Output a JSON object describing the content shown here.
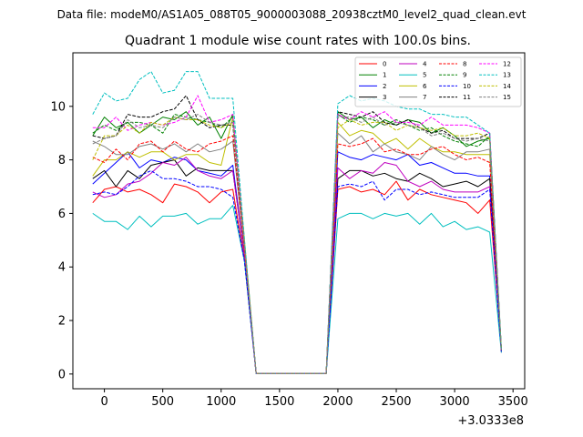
{
  "chart_data": {
    "type": "line",
    "suptitle": "Data file: modeM0/AS1A05_088T05_9000003088_20938cztM0_level2_quad_clean.evt",
    "title": "Quadrant 1 module wise count rates with 100.0s bins.",
    "xlabel": "",
    "ylabel": "",
    "x_offset_label": "+3.0333e8",
    "xlim": [
      -270,
      3600
    ],
    "ylim": [
      -0.55,
      12.0
    ],
    "xticks": [
      0,
      500,
      1000,
      1500,
      2000,
      2500,
      3000,
      3500
    ],
    "yticks": [
      0,
      2,
      4,
      6,
      8,
      10
    ],
    "legend_location": "top-right",
    "x": [
      -100,
      0,
      100,
      200,
      300,
      400,
      500,
      600,
      700,
      800,
      900,
      1000,
      1100,
      1200,
      1300,
      1400,
      1500,
      1600,
      1700,
      1800,
      1900,
      2000,
      2100,
      2200,
      2300,
      2400,
      2500,
      2600,
      2700,
      2800,
      2900,
      3000,
      3100,
      3200,
      3300,
      3400
    ],
    "series": [
      {
        "name": "0",
        "color": "#ff0000",
        "dash": "solid",
        "values": [
          6.4,
          6.9,
          7.0,
          6.8,
          6.9,
          6.7,
          6.4,
          7.1,
          7.0,
          6.8,
          6.4,
          6.8,
          6.9,
          4.2,
          0.02,
          0.02,
          0.02,
          0.02,
          0.02,
          0.02,
          0.02,
          6.9,
          7.0,
          6.8,
          6.9,
          6.7,
          7.2,
          6.5,
          6.9,
          6.7,
          6.6,
          6.5,
          6.4,
          6.0,
          6.5,
          0.9
        ]
      },
      {
        "name": "1",
        "color": "#008000",
        "dash": "solid",
        "values": [
          8.9,
          9.6,
          9.2,
          9.4,
          9.0,
          9.3,
          9.6,
          9.5,
          9.8,
          9.3,
          9.6,
          8.8,
          9.7,
          4.8,
          0.02,
          0.02,
          0.02,
          0.02,
          0.02,
          0.02,
          0.02,
          9.8,
          9.5,
          9.6,
          9.2,
          9.5,
          9.3,
          9.5,
          9.4,
          9.0,
          9.2,
          8.9,
          8.5,
          8.7,
          8.8,
          0.9
        ]
      },
      {
        "name": "2",
        "color": "#0000ff",
        "dash": "solid",
        "values": [
          7.1,
          7.5,
          7.9,
          8.3,
          7.7,
          8.0,
          7.9,
          8.1,
          8.0,
          7.6,
          7.5,
          7.4,
          7.8,
          4.4,
          0.02,
          0.02,
          0.02,
          0.02,
          0.02,
          0.02,
          0.02,
          8.3,
          8.1,
          8.0,
          8.2,
          8.1,
          8.0,
          8.2,
          7.8,
          7.9,
          7.7,
          7.5,
          7.5,
          7.4,
          7.4,
          0.85
        ]
      },
      {
        "name": "3",
        "color": "#000000",
        "dash": "solid",
        "values": [
          7.3,
          7.6,
          7.0,
          7.6,
          7.3,
          7.8,
          7.9,
          8.0,
          7.4,
          7.7,
          7.6,
          7.6,
          7.6,
          4.4,
          0.02,
          0.02,
          0.02,
          0.02,
          0.02,
          0.02,
          0.02,
          7.3,
          7.6,
          7.6,
          7.4,
          7.5,
          7.3,
          7.2,
          7.5,
          7.3,
          7.0,
          7.1,
          7.2,
          7.0,
          7.3,
          0.85
        ]
      },
      {
        "name": "4",
        "color": "#bf00bf",
        "dash": "solid",
        "values": [
          6.8,
          6.6,
          6.7,
          7.1,
          7.2,
          7.5,
          7.9,
          7.8,
          8.1,
          7.6,
          7.4,
          7.3,
          7.6,
          4.4,
          0.02,
          0.02,
          0.02,
          0.02,
          0.02,
          0.02,
          0.02,
          7.7,
          7.3,
          7.6,
          7.5,
          7.9,
          7.8,
          7.2,
          7.0,
          7.2,
          6.9,
          6.8,
          6.8,
          6.8,
          7.0,
          0.8
        ]
      },
      {
        "name": "5",
        "color": "#00bfbf",
        "dash": "solid",
        "values": [
          6.0,
          5.7,
          5.7,
          5.4,
          5.9,
          5.5,
          5.9,
          5.9,
          6.0,
          5.6,
          5.8,
          5.8,
          6.3,
          4.2,
          0.02,
          0.02,
          0.02,
          0.02,
          0.02,
          0.02,
          0.02,
          5.8,
          6.0,
          6.0,
          5.8,
          6.0,
          5.9,
          6.0,
          5.6,
          6.0,
          5.5,
          5.7,
          5.4,
          5.5,
          5.3,
          0.8
        ]
      },
      {
        "name": "6",
        "color": "#bfbf00",
        "dash": "solid",
        "values": [
          7.4,
          8.0,
          8.0,
          8.3,
          8.1,
          8.3,
          8.3,
          8.0,
          8.2,
          8.2,
          7.9,
          7.8,
          9.6,
          5.0,
          0.02,
          0.02,
          0.02,
          0.02,
          0.02,
          0.02,
          0.02,
          9.4,
          8.9,
          9.1,
          9.0,
          8.6,
          8.8,
          8.4,
          8.8,
          8.5,
          8.3,
          8.3,
          8.2,
          8.2,
          8.2,
          0.9
        ]
      },
      {
        "name": "7",
        "color": "#808080",
        "dash": "solid",
        "values": [
          8.7,
          8.5,
          8.2,
          8.2,
          8.5,
          8.6,
          8.4,
          8.6,
          8.3,
          8.6,
          8.3,
          8.4,
          8.7,
          4.6,
          0.02,
          0.02,
          0.02,
          0.02,
          0.02,
          0.02,
          0.02,
          9.0,
          8.6,
          8.9,
          8.3,
          8.6,
          8.3,
          8.2,
          8.0,
          8.5,
          8.2,
          8.0,
          8.3,
          8.3,
          8.4,
          0.85
        ]
      },
      {
        "name": "8",
        "color": "#ff0000",
        "dash": "dashed",
        "values": [
          8.1,
          7.9,
          8.4,
          8.0,
          8.6,
          8.7,
          8.3,
          8.7,
          8.4,
          8.3,
          8.6,
          8.7,
          8.9,
          4.6,
          0.02,
          0.02,
          0.02,
          0.02,
          0.02,
          0.02,
          0.02,
          8.6,
          8.5,
          8.6,
          8.8,
          8.3,
          8.4,
          8.2,
          8.2,
          8.4,
          8.5,
          8.2,
          8.0,
          8.1,
          7.9,
          0.85
        ]
      },
      {
        "name": "9",
        "color": "#008000",
        "dash": "dashed",
        "values": [
          9.0,
          9.3,
          9.1,
          9.4,
          9.4,
          9.3,
          9.0,
          9.7,
          9.6,
          9.5,
          9.4,
          9.2,
          9.6,
          4.8,
          0.02,
          0.02,
          0.02,
          0.02,
          0.02,
          0.02,
          0.02,
          9.7,
          9.4,
          9.6,
          9.5,
          9.3,
          9.5,
          9.3,
          9.1,
          9.2,
          8.9,
          8.7,
          8.6,
          8.5,
          8.9,
          0.9
        ]
      },
      {
        "name": "10",
        "color": "#0000ff",
        "dash": "dashed",
        "values": [
          6.7,
          6.8,
          6.7,
          7.0,
          7.4,
          7.6,
          7.3,
          7.3,
          7.2,
          7.0,
          7.0,
          6.9,
          6.6,
          4.2,
          0.02,
          0.02,
          0.02,
          0.02,
          0.02,
          0.02,
          0.02,
          7.0,
          7.1,
          7.0,
          7.2,
          6.5,
          6.9,
          6.9,
          6.7,
          6.8,
          6.7,
          6.6,
          6.6,
          6.6,
          6.9,
          0.8
        ]
      },
      {
        "name": "11",
        "color": "#000000",
        "dash": "dashed",
        "values": [
          8.9,
          8.8,
          8.9,
          9.7,
          9.6,
          9.6,
          9.8,
          9.9,
          10.4,
          9.5,
          9.2,
          9.3,
          9.3,
          4.8,
          0.02,
          0.02,
          0.02,
          0.02,
          0.02,
          0.02,
          0.02,
          9.8,
          9.7,
          9.6,
          9.8,
          9.4,
          9.3,
          9.5,
          9.2,
          9.0,
          9.1,
          8.8,
          8.8,
          8.8,
          9.0,
          0.9
        ]
      },
      {
        "name": "12",
        "color": "#ff00ff",
        "dash": "dashed",
        "values": [
          9.2,
          9.2,
          9.6,
          9.1,
          9.3,
          9.4,
          9.3,
          9.4,
          9.6,
          10.4,
          9.4,
          9.5,
          9.7,
          4.8,
          0.02,
          0.02,
          0.02,
          0.02,
          0.02,
          0.02,
          0.02,
          9.7,
          9.5,
          9.8,
          9.6,
          9.8,
          9.4,
          9.4,
          9.3,
          9.6,
          9.3,
          9.3,
          9.3,
          9.2,
          9.0,
          0.9
        ]
      },
      {
        "name": "13",
        "color": "#00bfbf",
        "dash": "dashed",
        "values": [
          9.7,
          10.5,
          10.2,
          10.3,
          11.0,
          11.3,
          10.5,
          10.6,
          11.3,
          11.3,
          10.3,
          10.3,
          10.3,
          5.0,
          0.02,
          0.02,
          0.02,
          0.02,
          0.02,
          0.02,
          0.02,
          10.1,
          10.4,
          10.2,
          10.3,
          10.2,
          10.0,
          9.9,
          9.9,
          9.7,
          9.7,
          9.6,
          9.6,
          9.3,
          9.0,
          0.95
        ]
      },
      {
        "name": "14",
        "color": "#bfbf00",
        "dash": "dashed",
        "values": [
          8.0,
          8.9,
          8.9,
          9.3,
          9.0,
          9.4,
          9.3,
          9.6,
          9.5,
          9.5,
          9.3,
          9.2,
          9.4,
          4.8,
          0.02,
          0.02,
          0.02,
          0.02,
          0.02,
          0.02,
          0.02,
          9.2,
          9.5,
          9.3,
          9.4,
          9.4,
          9.1,
          9.3,
          9.2,
          9.1,
          9.2,
          8.9,
          8.9,
          9.0,
          8.8,
          0.9
        ]
      },
      {
        "name": "15",
        "color": "#808080",
        "dash": "dashed",
        "values": [
          8.6,
          8.8,
          8.9,
          9.5,
          9.2,
          9.3,
          9.2,
          9.6,
          9.5,
          9.7,
          9.4,
          9.3,
          9.4,
          4.8,
          0.02,
          0.02,
          0.02,
          0.02,
          0.02,
          0.02,
          0.02,
          9.6,
          9.6,
          9.4,
          9.6,
          9.3,
          9.4,
          9.3,
          9.2,
          8.9,
          9.0,
          8.8,
          8.7,
          8.8,
          8.7,
          0.9
        ]
      }
    ]
  }
}
